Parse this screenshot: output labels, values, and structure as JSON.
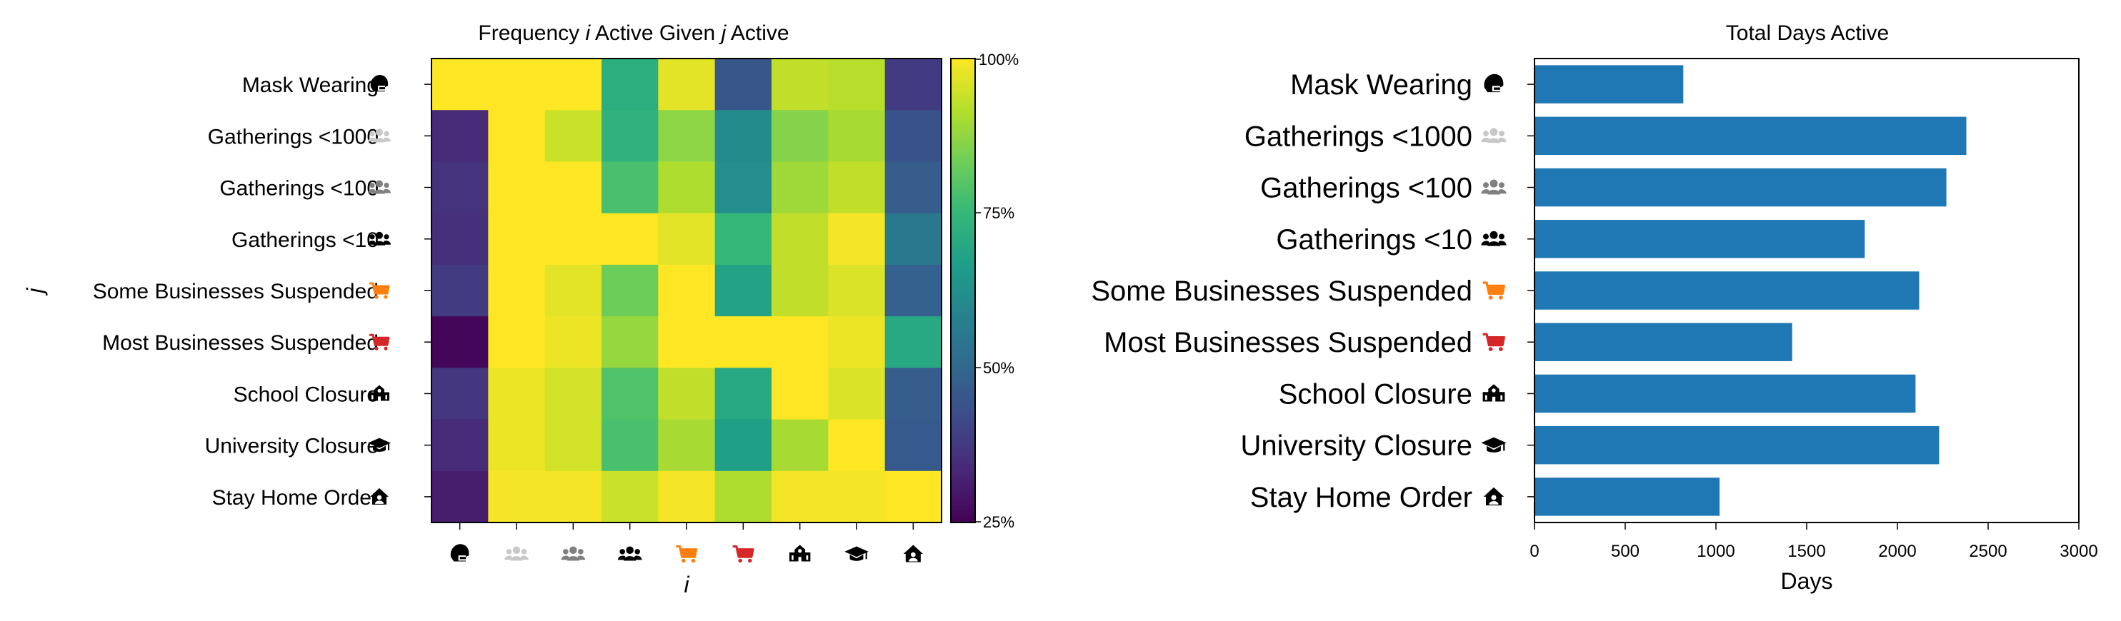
{
  "heatmap": {
    "title_parts": [
      "Frequency ",
      "i",
      " Active Given ",
      "j",
      " Active"
    ],
    "ylabel": "j",
    "xlabel": "i",
    "colorbar_ticks": [
      "25%",
      "50%",
      "75%",
      "100%"
    ]
  },
  "barchart": {
    "title": "Total Days Active",
    "xlabel": "Days",
    "xticks": [
      "0",
      "500",
      "1000",
      "1500",
      "2000",
      "2500",
      "3000"
    ]
  },
  "categories": [
    {
      "label": "Mask Wearing",
      "color": "#000000",
      "icon": "mask-head-icon"
    },
    {
      "label": "Gatherings <1000",
      "color": "#c8c8c8",
      "icon": "people-group-icon"
    },
    {
      "label": "Gatherings <100",
      "color": "#808080",
      "icon": "people-group-icon"
    },
    {
      "label": "Gatherings <10",
      "color": "#000000",
      "icon": "people-group-icon"
    },
    {
      "label": "Some Businesses Suspended",
      "color": "#ff7f0e",
      "icon": "shopping-cart-icon"
    },
    {
      "label": "Most Businesses Suspended",
      "color": "#d62728",
      "icon": "shopping-cart-icon"
    },
    {
      "label": "School Closure",
      "color": "#000000",
      "icon": "school-icon"
    },
    {
      "label": "University Closure",
      "color": "#000000",
      "icon": "graduation-cap-icon"
    },
    {
      "label": "Stay Home Order",
      "color": "#000000",
      "icon": "house-user-icon"
    }
  ],
  "chart_data": [
    {
      "type": "heatmap",
      "title": "Frequency i Active Given j Active",
      "xlabel": "i",
      "ylabel": "j",
      "rows": [
        "Mask Wearing",
        "Gatherings <1000",
        "Gatherings <100",
        "Gatherings <10",
        "Some Businesses Suspended",
        "Most Businesses Suspended",
        "School Closure",
        "University Closure",
        "Stay Home Order"
      ],
      "columns": [
        "Mask Wearing",
        "Gatherings <1000",
        "Gatherings <100",
        "Gatherings <10",
        "Some Businesses Suspended",
        "Most Businesses Suspended",
        "School Closure",
        "University Closure",
        "Stay Home Order"
      ],
      "value_range": [
        0.25,
        1.0
      ],
      "values": [
        [
          1.0,
          1.0,
          1.0,
          0.72,
          0.97,
          0.45,
          0.93,
          0.92,
          0.38
        ],
        [
          0.34,
          1.0,
          0.94,
          0.73,
          0.87,
          0.61,
          0.86,
          0.9,
          0.44
        ],
        [
          0.36,
          1.0,
          1.0,
          0.78,
          0.91,
          0.62,
          0.89,
          0.93,
          0.47
        ],
        [
          0.35,
          1.0,
          1.0,
          1.0,
          0.97,
          0.75,
          0.93,
          0.99,
          0.55
        ],
        [
          0.38,
          1.0,
          0.97,
          0.83,
          1.0,
          0.68,
          0.93,
          0.96,
          0.48
        ],
        [
          0.26,
          1.0,
          0.98,
          0.88,
          1.0,
          1.0,
          1.0,
          0.98,
          0.7
        ],
        [
          0.37,
          0.98,
          0.95,
          0.79,
          0.93,
          0.7,
          1.0,
          0.96,
          0.47
        ],
        [
          0.34,
          0.98,
          0.95,
          0.78,
          0.9,
          0.67,
          0.9,
          1.0,
          0.46
        ],
        [
          0.31,
          0.99,
          0.99,
          0.94,
          0.99,
          0.91,
          0.99,
          0.99,
          1.0
        ]
      ],
      "colormap": "viridis",
      "colorbar_ticks": [
        "25%",
        "50%",
        "75%",
        "100%"
      ]
    },
    {
      "type": "bar",
      "orientation": "horizontal",
      "title": "Total Days Active",
      "xlabel": "Days",
      "categories": [
        "Mask Wearing",
        "Gatherings <1000",
        "Gatherings <100",
        "Gatherings <10",
        "Some Businesses Suspended",
        "Most Businesses Suspended",
        "School Closure",
        "University Closure",
        "Stay Home Order"
      ],
      "values": [
        820,
        2380,
        2270,
        1820,
        2120,
        1420,
        2100,
        2230,
        1020
      ],
      "xlim": [
        0,
        3000
      ],
      "bar_color": "#1f77b4"
    }
  ]
}
